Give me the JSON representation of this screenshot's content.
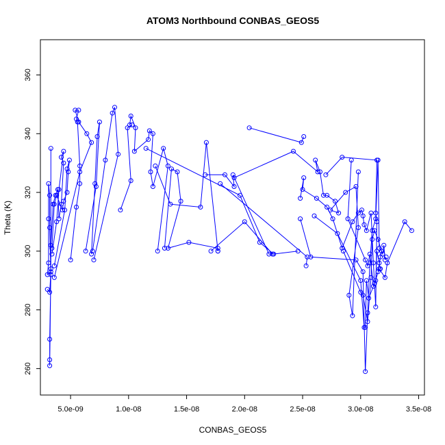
{
  "chart_data": {
    "type": "line",
    "title": "ATOM3 Northbound CONBAS_GEOS5",
    "xlabel": "CONBAS_GEOS5",
    "ylabel": "Theta (K)",
    "xlim": [
      2.4e-09,
      3.55e-08
    ],
    "ylim": [
      251,
      372
    ],
    "x_ticks": [
      5e-09,
      1e-08,
      1.5e-08,
      2e-08,
      2.5e-08,
      3e-08,
      3.5e-08
    ],
    "x_tick_labels": [
      "5.0e-09",
      "1.0e-08",
      "1.5e-08",
      "2.0e-08",
      "2.5e-08",
      "3.0e-08",
      "3.5e-08"
    ],
    "y_ticks": [
      260,
      280,
      300,
      320,
      340,
      360
    ],
    "y_tick_labels": [
      "260",
      "280",
      "300",
      "320",
      "340",
      "360"
    ],
    "grid": false,
    "series": [
      {
        "color": "#0000ff",
        "marker": "open-circle",
        "segments": [
          [
            [
              3e-09,
              287
            ],
            [
              3.2e-09,
              286
            ],
            [
              3.3e-09,
              293
            ],
            [
              3e-09,
              292
            ],
            [
              3.1e-09,
              296
            ],
            [
              3.1e-09,
              311
            ],
            [
              3.1e-09,
              323
            ],
            [
              3.2e-09,
              319
            ],
            [
              3.2e-09,
              308
            ],
            [
              3.3e-09,
              292
            ],
            [
              3.2e-09,
              270
            ],
            [
              3.2e-09,
              263
            ],
            [
              3.2e-09,
              261
            ],
            [
              3.3e-09,
              294
            ],
            [
              3.3e-09,
              335
            ]
          ],
          [
            [
              3.3e-09,
              302
            ],
            [
              3.5e-09,
              316
            ],
            [
              3.7e-09,
              319
            ],
            [
              3.9e-09,
              321
            ],
            [
              4e-09,
              311
            ],
            [
              4.2e-09,
              316
            ],
            [
              4.4e-09,
              330
            ],
            [
              4.2e-09,
              332
            ],
            [
              4.4e-09,
              334
            ],
            [
              4e-09,
              321
            ],
            [
              3.8e-09,
              310
            ],
            [
              3.4e-09,
              299
            ]
          ],
          [
            [
              3.4e-09,
              301
            ],
            [
              3.6e-09,
              316
            ],
            [
              3.8e-09,
              319
            ],
            [
              4.3e-09,
              314
            ],
            [
              4.4e-09,
              317
            ],
            [
              4.7e-09,
              320
            ],
            [
              4.8e-09,
              327
            ],
            [
              4.9e-09,
              331
            ],
            [
              4.7e-09,
              328
            ],
            [
              4.5e-09,
              314
            ],
            [
              3.6e-09,
              295
            ]
          ],
          [
            [
              5e-09,
              297
            ],
            [
              5.5e-09,
              315
            ],
            [
              5.8e-09,
              323
            ],
            [
              5.8e-09,
              329
            ],
            [
              5.6e-09,
              344
            ],
            [
              5.5e-09,
              345
            ],
            [
              5.7e-09,
              348
            ],
            [
              5.4e-09,
              348
            ],
            [
              5.7e-09,
              344
            ],
            [
              6.4e-09,
              340
            ],
            [
              6.8e-09,
              337
            ],
            [
              5.8e-09,
              327
            ],
            [
              3.6e-09,
              291
            ]
          ],
          [
            [
              6.8e-09,
              299
            ],
            [
              7.1e-09,
              323
            ],
            [
              7.3e-09,
              339
            ],
            [
              7.5e-09,
              344
            ],
            [
              7.2e-09,
              322
            ],
            [
              6.3e-09,
              300
            ]
          ],
          [
            [
              6.9e-09,
              300
            ],
            [
              8e-09,
              331
            ],
            [
              8.6e-09,
              347
            ],
            [
              8.8e-09,
              349
            ],
            [
              9.1e-09,
              333
            ],
            [
              7e-09,
              297
            ]
          ],
          [
            [
              1.03e-08,
              343
            ],
            [
              9.9e-09,
              342
            ],
            [
              1.02e-08,
              324
            ],
            [
              9.3e-09,
              314
            ]
          ],
          [
            [
              1.01e-08,
              343
            ],
            [
              1.02e-08,
              346
            ],
            [
              1.06e-08,
              342
            ],
            [
              1.05e-08,
              334
            ],
            [
              1.17e-08,
              338
            ],
            [
              1.18e-08,
              341
            ],
            [
              1.21e-08,
              340
            ],
            [
              1.19e-08,
              327
            ],
            [
              1.21e-08,
              322
            ],
            [
              1.3e-08,
              335
            ],
            [
              1.34e-08,
              329
            ],
            [
              1.25e-08,
              300
            ]
          ],
          [
            [
              1.31e-08,
              301
            ],
            [
              1.37e-08,
              328
            ],
            [
              1.42e-08,
              327
            ],
            [
              1.45e-08,
              317
            ],
            [
              1.34e-08,
              301
            ],
            [
              1.52e-08,
              303
            ],
            [
              1.77e-08,
              301
            ],
            [
              1.77e-08,
              300
            ]
          ],
          [
            [
              1.23e-08,
              329
            ],
            [
              1.36e-08,
              316
            ],
            [
              1.62e-08,
              315
            ],
            [
              1.67e-08,
              337
            ],
            [
              1.77e-08,
              300
            ]
          ],
          [
            [
              1.66e-08,
              326
            ],
            [
              1.83e-08,
              326
            ],
            [
              1.91e-08,
              322
            ],
            [
              1.9e-08,
              326
            ],
            [
              2.21e-08,
              299
            ],
            [
              2.24e-08,
              299
            ],
            [
              2e-08,
              310
            ],
            [
              1.71e-08,
              300
            ]
          ],
          [
            [
              1.15e-08,
              335
            ],
            [
              1.96e-08,
              319
            ],
            [
              2.13e-08,
              303
            ],
            [
              2.25e-08,
              299
            ],
            [
              2.46e-08,
              300
            ]
          ],
          [
            [
              1.79e-08,
              323
            ],
            [
              2.54e-08,
              298
            ],
            [
              2.53e-08,
              295
            ]
          ],
          [
            [
              2.04e-08,
              342
            ],
            [
              2.49e-08,
              337
            ],
            [
              2.51e-08,
              339
            ]
          ],
          [
            [
              1.91e-08,
              325
            ],
            [
              2.42e-08,
              334
            ],
            [
              2.63e-08,
              327
            ],
            [
              2.61e-08,
              331
            ],
            [
              2.65e-08,
              327
            ],
            [
              2.68e-08,
              319
            ],
            [
              2.71e-08,
              319
            ],
            [
              2.78e-08,
              317
            ],
            [
              2.81e-08,
              313
            ],
            [
              2.74e-08,
              314
            ],
            [
              2.87e-08,
              320
            ],
            [
              2.96e-08,
              322
            ],
            [
              2.98e-08,
              308
            ],
            [
              2.9e-08,
              285
            ],
            [
              2.93e-08,
              278
            ],
            [
              2.98e-08,
              327
            ]
          ],
          [
            [
              2.48e-08,
              318
            ],
            [
              2.51e-08,
              325
            ],
            [
              2.5e-08,
              321
            ],
            [
              2.62e-08,
              318
            ],
            [
              2.71e-08,
              315
            ],
            [
              2.76e-08,
              311
            ],
            [
              2.84e-08,
              301
            ],
            [
              2.93e-08,
              310
            ],
            [
              2.98e-08,
              313
            ],
            [
              3.01e-08,
              314
            ],
            [
              3.02e-08,
              312
            ],
            [
              3.03e-08,
              309
            ],
            [
              3.05e-08,
              307
            ],
            [
              3.09e-08,
              313
            ],
            [
              3.11e-08,
              296
            ],
            [
              3.13e-08,
              281
            ],
            [
              3.14e-08,
              310
            ],
            [
              3.13e-08,
              313
            ],
            [
              3.14e-08,
              331
            ],
            [
              2.84e-08,
              332
            ],
            [
              2.7e-08,
              326
            ]
          ],
          [
            [
              2.48e-08,
              311
            ],
            [
              2.57e-08,
              298
            ],
            [
              2.96e-08,
              297
            ],
            [
              3.02e-08,
              293
            ],
            [
              3.04e-08,
              259
            ],
            [
              3.06e-08,
              279
            ],
            [
              3.08e-08,
              296
            ],
            [
              3.1e-08,
              307
            ],
            [
              3.13e-08,
              311
            ],
            [
              3.15e-08,
              331
            ],
            [
              3.16e-08,
              301
            ],
            [
              3.18e-08,
              300
            ],
            [
              3.17e-08,
              298
            ],
            [
              3.15e-08,
              293
            ]
          ],
          [
            [
              2.6e-08,
              312
            ],
            [
              2.8e-08,
              306
            ],
            [
              3e-08,
              290
            ],
            [
              3.03e-08,
              274
            ],
            [
              3.04e-08,
              274
            ],
            [
              3.05e-08,
              290
            ],
            [
              3.07e-08,
              284
            ],
            [
              3.12e-08,
              289
            ],
            [
              3.16e-08,
              294
            ],
            [
              3.21e-08,
              291
            ],
            [
              3.23e-08,
              296
            ],
            [
              3.38e-08,
              310
            ],
            [
              3.44e-08,
              307
            ]
          ],
          [
            [
              2.85e-08,
              300
            ],
            [
              3e-08,
              286
            ],
            [
              3.02e-08,
              285
            ],
            [
              3.06e-08,
              276
            ],
            [
              3.09e-08,
              291
            ],
            [
              3.1e-08,
              304
            ],
            [
              3.12e-08,
              307
            ],
            [
              3.15e-08,
              304
            ],
            [
              3.18e-08,
              300
            ],
            [
              3.19e-08,
              299
            ],
            [
              3.2e-08,
              302
            ],
            [
              3.21e-08,
              297
            ],
            [
              3.22e-08,
              298
            ]
          ],
          [
            [
              2.92e-08,
              331
            ],
            [
              2.89e-08,
              311
            ],
            [
              3.04e-08,
              297
            ],
            [
              3.06e-08,
              295
            ],
            [
              3.08e-08,
              299
            ],
            [
              3.11e-08,
              288
            ],
            [
              3.13e-08,
              290
            ],
            [
              3.14e-08,
              300
            ],
            [
              3.16e-08,
              296
            ],
            [
              3.17e-08,
              294
            ]
          ]
        ]
      }
    ]
  }
}
